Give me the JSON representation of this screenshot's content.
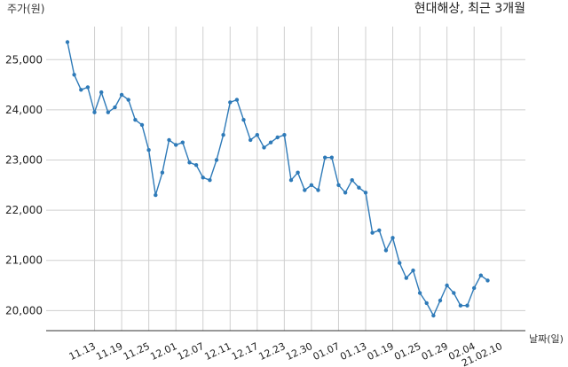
{
  "chart_data": {
    "type": "line",
    "title": "현대해상, 최근 3개월",
    "xlabel": "날짜(일)",
    "ylabel": "주가(원)",
    "ylim": [
      19600,
      25800
    ],
    "yticks": [
      20000,
      21000,
      22000,
      23000,
      24000,
      25000
    ],
    "ytick_labels": [
      "20,000",
      "21,000",
      "22,000",
      "23,000",
      "24,000",
      "25,000"
    ],
    "xtick_labels": [
      "11.13",
      "11.19",
      "11.25",
      "12.01",
      "12.07",
      "12.11",
      "12.17",
      "12.23",
      "12.30",
      "01.07",
      "01.13",
      "01.19",
      "01.25",
      "01.29",
      "02.04",
      "21.02.10"
    ],
    "xtick_positions": [
      4,
      8,
      12,
      16,
      20,
      24,
      28,
      32,
      36,
      40,
      44,
      48,
      52,
      56,
      60,
      64
    ],
    "grid": true,
    "color": "#2e7ab8",
    "series": [
      {
        "name": "",
        "values": [
          25350,
          24700,
          24400,
          24450,
          23950,
          24350,
          23950,
          24050,
          24300,
          24200,
          23800,
          23700,
          23200,
          22300,
          22750,
          23400,
          23300,
          23350,
          22950,
          22900,
          22650,
          22600,
          23000,
          23500,
          24150,
          24200,
          23800,
          23400,
          23500,
          23250,
          23350,
          23450,
          23500,
          22600,
          22750,
          22400,
          22500,
          22400,
          23050,
          23050,
          22500,
          22350,
          22600,
          22450,
          22350,
          21550,
          21600,
          21200,
          21450,
          20950,
          20650,
          20800,
          20350,
          20150,
          19900,
          20200,
          20500,
          20350,
          20100,
          20100,
          20450,
          20700,
          20600
        ]
      }
    ]
  }
}
